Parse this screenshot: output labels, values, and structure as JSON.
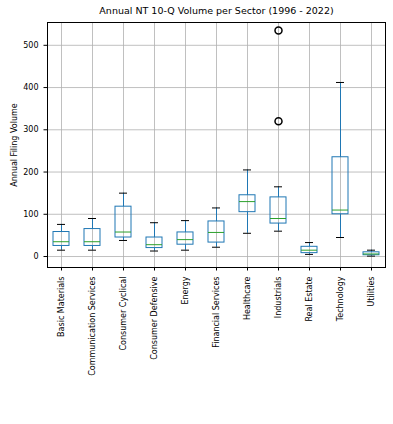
{
  "chart_data": {
    "type": "box",
    "title": "Annual NT 10-Q Volume per Sector (1996 - 2022)",
    "y_label": "Annual Filing Volume",
    "categories": [
      "Basic Materials",
      "Communication Services",
      "Consumer Cyclical",
      "Consumer Defensive",
      "Energy",
      "Financial Services",
      "Healthcare",
      "Industrials",
      "Real Estate",
      "Technology",
      "Utilities"
    ],
    "whisker_low": [
      15,
      15,
      38,
      13,
      15,
      22,
      55,
      60,
      5,
      45,
      1
    ],
    "q1": [
      25,
      25,
      45,
      20,
      28,
      33,
      105,
      78,
      8,
      100,
      3
    ],
    "median": [
      35,
      35,
      58,
      28,
      40,
      57,
      130,
      90,
      15,
      110,
      6
    ],
    "q3": [
      58,
      65,
      118,
      45,
      57,
      83,
      145,
      140,
      23,
      235,
      10
    ],
    "whisker_high": [
      76,
      90,
      150,
      80,
      85,
      115,
      205,
      165,
      33,
      412,
      15
    ],
    "outliers": [
      [],
      [],
      [],
      [],
      [],
      [],
      [],
      [
        535,
        320
      ],
      [],
      [],
      []
    ],
    "color": "#1f77b4",
    "ylim": [
      -26,
      554
    ],
    "yticks": [
      0,
      100,
      200,
      300,
      400,
      500
    ],
    "grid": true
  }
}
